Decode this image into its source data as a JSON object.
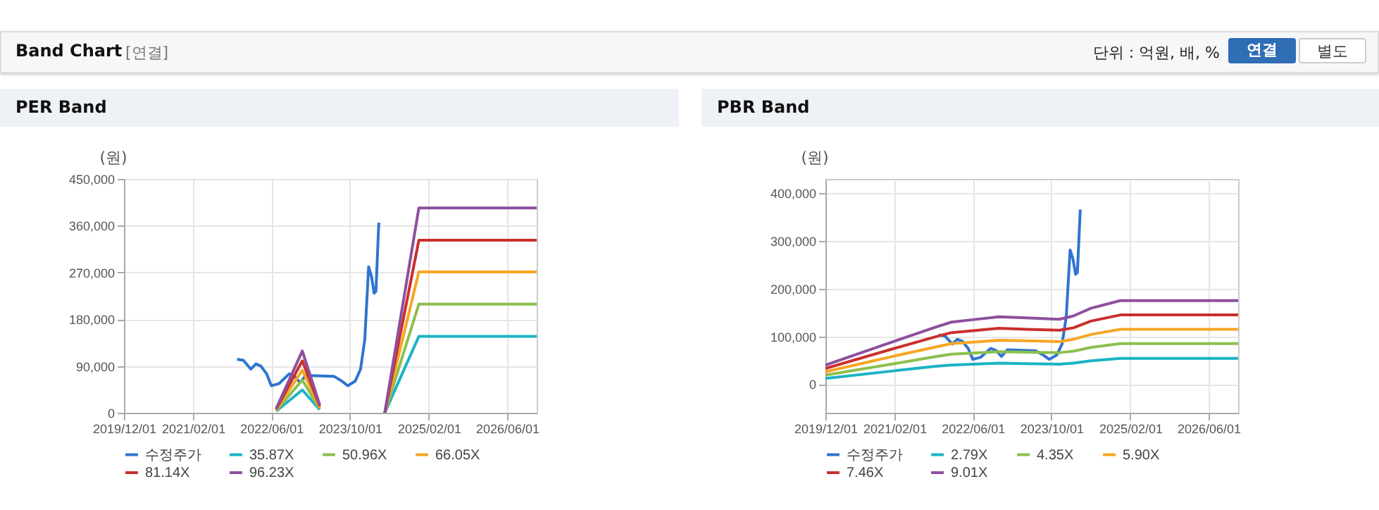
{
  "chart_data": [
    {
      "type": "line",
      "title": "PER Band",
      "ylabel": "(원)",
      "annotations": [
        "Band Chart",
        "[연결]",
        "단위 : 억원, 배, %",
        "연결",
        "별도"
      ],
      "xlim": [
        "2019-12-01",
        "2026-12-01"
      ],
      "xticks": [
        {
          "value": "2019-12-01",
          "label": "2019/12/01"
        },
        {
          "value": "2021-02-01",
          "label": "2021/02/01"
        },
        {
          "value": "2022-06-01",
          "label": "2022/06/01"
        },
        {
          "value": "2023-10-01",
          "label": "2023/10/01"
        },
        {
          "value": "2025-02-01",
          "label": "2025/02/01"
        },
        {
          "value": "2026-06-01",
          "label": "2026/06/01"
        }
      ],
      "ylim": [
        0,
        450000
      ],
      "yticks": [
        {
          "value": 0,
          "label": "0"
        },
        {
          "value": 90000,
          "label": "90,000"
        },
        {
          "value": 180000,
          "label": "180,000"
        },
        {
          "value": 270000,
          "label": "270,000"
        },
        {
          "value": 360000,
          "label": "360,000"
        },
        {
          "value": 450000,
          "label": "450,000"
        }
      ],
      "grid": true,
      "legend": "bottom",
      "series": [
        {
          "name": "수정주가",
          "color": "#2f74d0",
          "x": [
            "2021-11-01",
            "2021-12-10",
            "2022-01-25",
            "2022-02-25",
            "2022-03-28",
            "2022-05-03",
            "2022-06-01",
            "2022-07-18",
            "2022-09-20",
            "2022-10-25",
            "2022-11-25",
            "2023-01-01",
            "2023-06-25",
            "2023-08-12",
            "2023-09-18",
            "2023-11-03",
            "2023-12-06",
            "2024-01-01",
            "2024-01-25",
            "2024-02-12",
            "2024-02-28",
            "2024-03-10",
            "2024-03-28"
          ],
          "values": [
            103000,
            101000,
            84000,
            94000,
            90000,
            75000,
            52000,
            56000,
            75000,
            70000,
            58000,
            72000,
            70000,
            61000,
            52000,
            61000,
            84000,
            141000,
            281000,
            262000,
            230000,
            234000,
            366000
          ]
        },
        {
          "name": "35.87X",
          "color": "#1bb3c4",
          "x": [
            "2022-07-01",
            "2022-12-10",
            "2023-03-28",
            "2023-06-01",
            "2024-05-04",
            "2024-12-01",
            "2026-12-01"
          ],
          "values": [
            3000,
            44000,
            6000,
            null,
            0,
            147000,
            147000
          ]
        },
        {
          "name": "50.96X",
          "color": "#8cbf4e",
          "x": [
            "2022-07-01",
            "2022-12-10",
            "2023-03-28",
            "2023-06-01",
            "2024-05-04",
            "2024-12-01",
            "2026-12-01"
          ],
          "values": [
            4000,
            63000,
            8000,
            null,
            0,
            209000,
            209000
          ]
        },
        {
          "name": "66.05X",
          "color": "#f5a623",
          "x": [
            "2022-07-01",
            "2022-12-10",
            "2023-03-28",
            "2023-06-01",
            "2024-05-04",
            "2024-12-01",
            "2026-12-01"
          ],
          "values": [
            5000,
            82000,
            10000,
            null,
            0,
            271000,
            271000
          ]
        },
        {
          "name": "81.14X",
          "color": "#c9302c",
          "x": [
            "2022-07-01",
            "2022-12-10",
            "2023-03-28",
            "2023-06-01",
            "2024-05-04",
            "2024-12-01",
            "2026-12-01"
          ],
          "values": [
            7000,
            100000,
            13000,
            null,
            0,
            332000,
            332000
          ]
        },
        {
          "name": "96.23X",
          "color": "#8e4f9e",
          "x": [
            "2022-07-01",
            "2022-12-10",
            "2023-03-28",
            "2023-06-01",
            "2024-05-04",
            "2024-12-01",
            "2026-12-01"
          ],
          "values": [
            8000,
            119000,
            15000,
            null,
            0,
            394000,
            394000
          ]
        }
      ]
    },
    {
      "type": "line",
      "title": "PBR Band",
      "ylabel": "(원)",
      "xlim": [
        "2019-12-01",
        "2026-12-01"
      ],
      "xticks": [
        {
          "value": "2019-12-01",
          "label": "2019/12/01"
        },
        {
          "value": "2021-02-01",
          "label": "2021/02/01"
        },
        {
          "value": "2022-06-01",
          "label": "2022/06/01"
        },
        {
          "value": "2023-10-01",
          "label": "2023/10/01"
        },
        {
          "value": "2025-02-01",
          "label": "2025/02/01"
        },
        {
          "value": "2026-06-01",
          "label": "2026/06/01"
        }
      ],
      "ylim": [
        -60000,
        430000
      ],
      "yticks": [
        {
          "value": 0,
          "label": "0"
        },
        {
          "value": 100000,
          "label": "100,000"
        },
        {
          "value": 200000,
          "label": "200,000"
        },
        {
          "value": 300000,
          "label": "300,000"
        },
        {
          "value": 400000,
          "label": "400,000"
        }
      ],
      "grid": true,
      "legend": "bottom",
      "series": [
        {
          "name": "수정주가",
          "color": "#2f74d0",
          "x": [
            "2021-11-01",
            "2021-12-10",
            "2022-01-25",
            "2022-02-25",
            "2022-03-28",
            "2022-05-03",
            "2022-06-01",
            "2022-07-18",
            "2022-09-20",
            "2022-10-25",
            "2022-11-25",
            "2023-01-01",
            "2023-06-25",
            "2023-08-12",
            "2023-09-18",
            "2023-11-03",
            "2023-12-06",
            "2024-01-01",
            "2024-01-25",
            "2024-02-12",
            "2024-02-28",
            "2024-03-10",
            "2024-03-28"
          ],
          "values": [
            103000,
            101000,
            84000,
            94000,
            90000,
            75000,
            52000,
            56000,
            75000,
            70000,
            58000,
            72000,
            70000,
            61000,
            52000,
            61000,
            84000,
            141000,
            281000,
            262000,
            230000,
            234000,
            366000
          ]
        },
        {
          "name": "2.79X",
          "color": "#1bb3c4",
          "x": [
            "2019-12-01",
            "2021-02-01",
            "2021-10-01",
            "2022-01-20",
            "2022-06-01",
            "2022-11-10",
            "2023-05-01",
            "2023-11-20",
            "2024-02-15",
            "2024-06-01",
            "2024-12-01",
            "2026-12-01"
          ],
          "values": [
            12000,
            28000,
            37000,
            40000,
            42000,
            44000,
            43000,
            42000,
            44000,
            49000,
            54000,
            54000
          ]
        },
        {
          "name": "4.35X",
          "color": "#8cbf4e",
          "x": [
            "2019-12-01",
            "2021-02-01",
            "2021-10-01",
            "2022-01-20",
            "2022-06-01",
            "2022-11-10",
            "2023-05-01",
            "2023-11-20",
            "2024-02-15",
            "2024-06-01",
            "2024-12-01",
            "2026-12-01"
          ],
          "values": [
            19000,
            43000,
            57000,
            63000,
            65000,
            68000,
            67000,
            66000,
            69000,
            77000,
            85000,
            85000
          ]
        },
        {
          "name": "5.90X",
          "color": "#f5a623",
          "x": [
            "2019-12-01",
            "2021-02-01",
            "2021-10-01",
            "2022-01-20",
            "2022-06-01",
            "2022-11-10",
            "2023-05-01",
            "2023-11-20",
            "2024-02-15",
            "2024-06-01",
            "2024-12-01",
            "2026-12-01"
          ],
          "values": [
            26000,
            59000,
            77000,
            85000,
            88000,
            92000,
            91000,
            89000,
            94000,
            104000,
            115000,
            115000
          ]
        },
        {
          "name": "7.46X",
          "color": "#c9302c",
          "x": [
            "2019-12-01",
            "2021-02-01",
            "2021-10-01",
            "2022-01-20",
            "2022-06-01",
            "2022-11-10",
            "2023-05-01",
            "2023-11-20",
            "2024-02-15",
            "2024-06-01",
            "2024-12-01",
            "2026-12-01"
          ],
          "values": [
            33000,
            75000,
            98000,
            108000,
            112000,
            117000,
            115000,
            113000,
            118000,
            132000,
            145000,
            145000
          ]
        },
        {
          "name": "9.01X",
          "color": "#8e4f9e",
          "x": [
            "2019-12-01",
            "2021-02-01",
            "2021-10-01",
            "2022-01-20",
            "2022-06-01",
            "2022-11-10",
            "2023-05-01",
            "2023-11-20",
            "2024-02-15",
            "2024-06-01",
            "2024-12-01",
            "2026-12-01"
          ],
          "values": [
            40000,
            90000,
            118000,
            130000,
            135000,
            141000,
            139000,
            136000,
            143000,
            159000,
            175000,
            175000
          ]
        }
      ]
    }
  ]
}
